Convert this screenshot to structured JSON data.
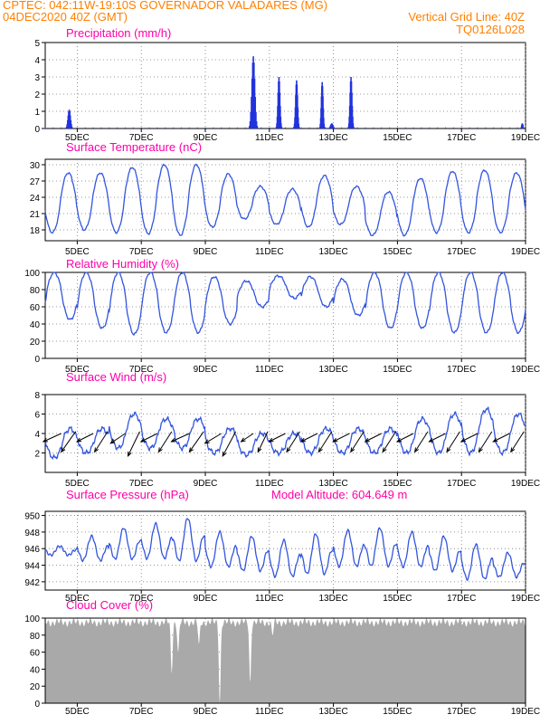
{
  "header": {
    "line1": "CPTEC:  042:11W-19:10S  GOVERNADOR VALADARES (MG)",
    "line2_left": "04DEC2020 40Z (GMT)",
    "line2_right": "Vertical Grid Line: 40Z",
    "line3_right": "TQ0126L028"
  },
  "x_labels": [
    "5DEC",
    "7DEC",
    "9DEC",
    "11DEC",
    "13DEC",
    "15DEC",
    "17DEC",
    "19DEC"
  ],
  "colors": {
    "line": "#3355dd",
    "bar": "#2233dd",
    "cloud": "#a9a9a9",
    "title": "#ff00aa",
    "header": "#ff8000"
  },
  "chart_data": [
    {
      "type": "bar",
      "title": "Precipitation (mm/h)",
      "ylim": [
        0,
        5
      ],
      "yticks": [
        "0",
        "1",
        "2",
        "3",
        "4",
        "5"
      ],
      "x_range_days": [
        4.0,
        19.0
      ],
      "events": [
        {
          "x": 4.75,
          "peak": 1.1,
          "width": 0.1
        },
        {
          "x": 10.5,
          "peak": 4.2,
          "width": 0.12
        },
        {
          "x": 11.3,
          "peak": 3.0,
          "width": 0.08
        },
        {
          "x": 11.85,
          "peak": 2.8,
          "width": 0.08
        },
        {
          "x": 12.65,
          "peak": 2.7,
          "width": 0.07
        },
        {
          "x": 12.95,
          "peak": 0.3,
          "width": 0.1
        },
        {
          "x": 13.55,
          "peak": 3.0,
          "width": 0.08
        },
        {
          "x": 18.9,
          "peak": 0.3,
          "width": 0.05
        }
      ]
    },
    {
      "type": "line",
      "title": "Surface Temperature (nC)",
      "ylim": [
        16,
        31
      ],
      "yticks": [
        "18",
        "21",
        "24",
        "27",
        "30"
      ],
      "daily_max": [
        28.5,
        28.5,
        29.5,
        30.0,
        30.0,
        28.3,
        26.0,
        25.5,
        28.0,
        26.0,
        25.0,
        27.5,
        28.8,
        29.0,
        28.5
      ],
      "daily_min": [
        17.5,
        18.0,
        17.5,
        17.3,
        17.0,
        18.5,
        20.0,
        19.0,
        18.5,
        19.0,
        17.0,
        17.0,
        17.5,
        17.5,
        17.5
      ]
    },
    {
      "type": "line",
      "title": "Relative Humidity (%)",
      "ylim": [
        0,
        100
      ],
      "yticks": [
        "0",
        "20",
        "40",
        "60",
        "80",
        "100"
      ],
      "daily_max": [
        100,
        100,
        100,
        100,
        100,
        95,
        90,
        96,
        95,
        92,
        100,
        100,
        100,
        100,
        100
      ],
      "daily_min": [
        45,
        35,
        28,
        30,
        30,
        40,
        60,
        70,
        60,
        50,
        35,
        35,
        30,
        30,
        30
      ]
    },
    {
      "type": "line",
      "title": "Surface Wind (m/s)",
      "ylim": [
        0,
        8
      ],
      "yticks": [
        "2",
        "4",
        "6",
        "8"
      ],
      "daily_max": [
        4.5,
        4.5,
        6.0,
        5.5,
        5.5,
        4.5,
        4.0,
        4.0,
        4.5,
        4.5,
        4.5,
        5.5,
        6.0,
        6.5,
        6.0
      ],
      "daily_min": [
        1.5,
        2.0,
        2.5,
        2.5,
        2.5,
        2.0,
        1.8,
        2.0,
        2.0,
        2.0,
        2.0,
        2.0,
        2.0,
        2.0,
        2.0
      ],
      "arrow_u": [
        -2.2,
        -2.0,
        -1.8,
        -2.0,
        -2.2,
        -2.0,
        -1.5,
        -2.0,
        -2.0,
        -2.0,
        -2.0,
        -2.0,
        -2.0,
        -2.0,
        -2.0
      ],
      "arrow_v": [
        -1.0,
        -1.0,
        -1.2,
        -1.0,
        -1.0,
        -1.2,
        -1.0,
        -1.0,
        -1.0,
        -1.0,
        -1.0,
        -1.0,
        -1.0,
        -1.0,
        -1.0
      ]
    },
    {
      "type": "line",
      "title": "Surface Pressure (hPa)",
      "subtitle": "Model Altitude: 604.649 m",
      "ylim": [
        941,
        950.5
      ],
      "yticks": [
        "942",
        "944",
        "946",
        "948",
        "950"
      ],
      "daily_max": [
        946.3,
        947.5,
        948.5,
        949.0,
        949.7,
        948.0,
        947.5,
        947.0,
        947.8,
        948.2,
        948.5,
        948.0,
        947.5,
        946.5,
        945.5
      ],
      "daily_min": [
        945.0,
        944.0,
        944.0,
        944.0,
        943.5,
        943.0,
        942.5,
        941.8,
        942.0,
        943.0,
        943.0,
        943.0,
        942.5,
        941.5,
        942.0
      ]
    },
    {
      "type": "area",
      "title": "Cloud Cover (%)",
      "ylim": [
        0,
        100
      ],
      "yticks": [
        "0",
        "20",
        "40",
        "60",
        "80",
        "100"
      ],
      "base_value": 95,
      "dips": [
        {
          "x": 7.95,
          "value": 35
        },
        {
          "x": 8.15,
          "value": 60
        },
        {
          "x": 8.8,
          "value": 70
        },
        {
          "x": 9.45,
          "value": 0
        },
        {
          "x": 10.4,
          "value": 25
        },
        {
          "x": 11.1,
          "value": 80
        }
      ]
    }
  ]
}
